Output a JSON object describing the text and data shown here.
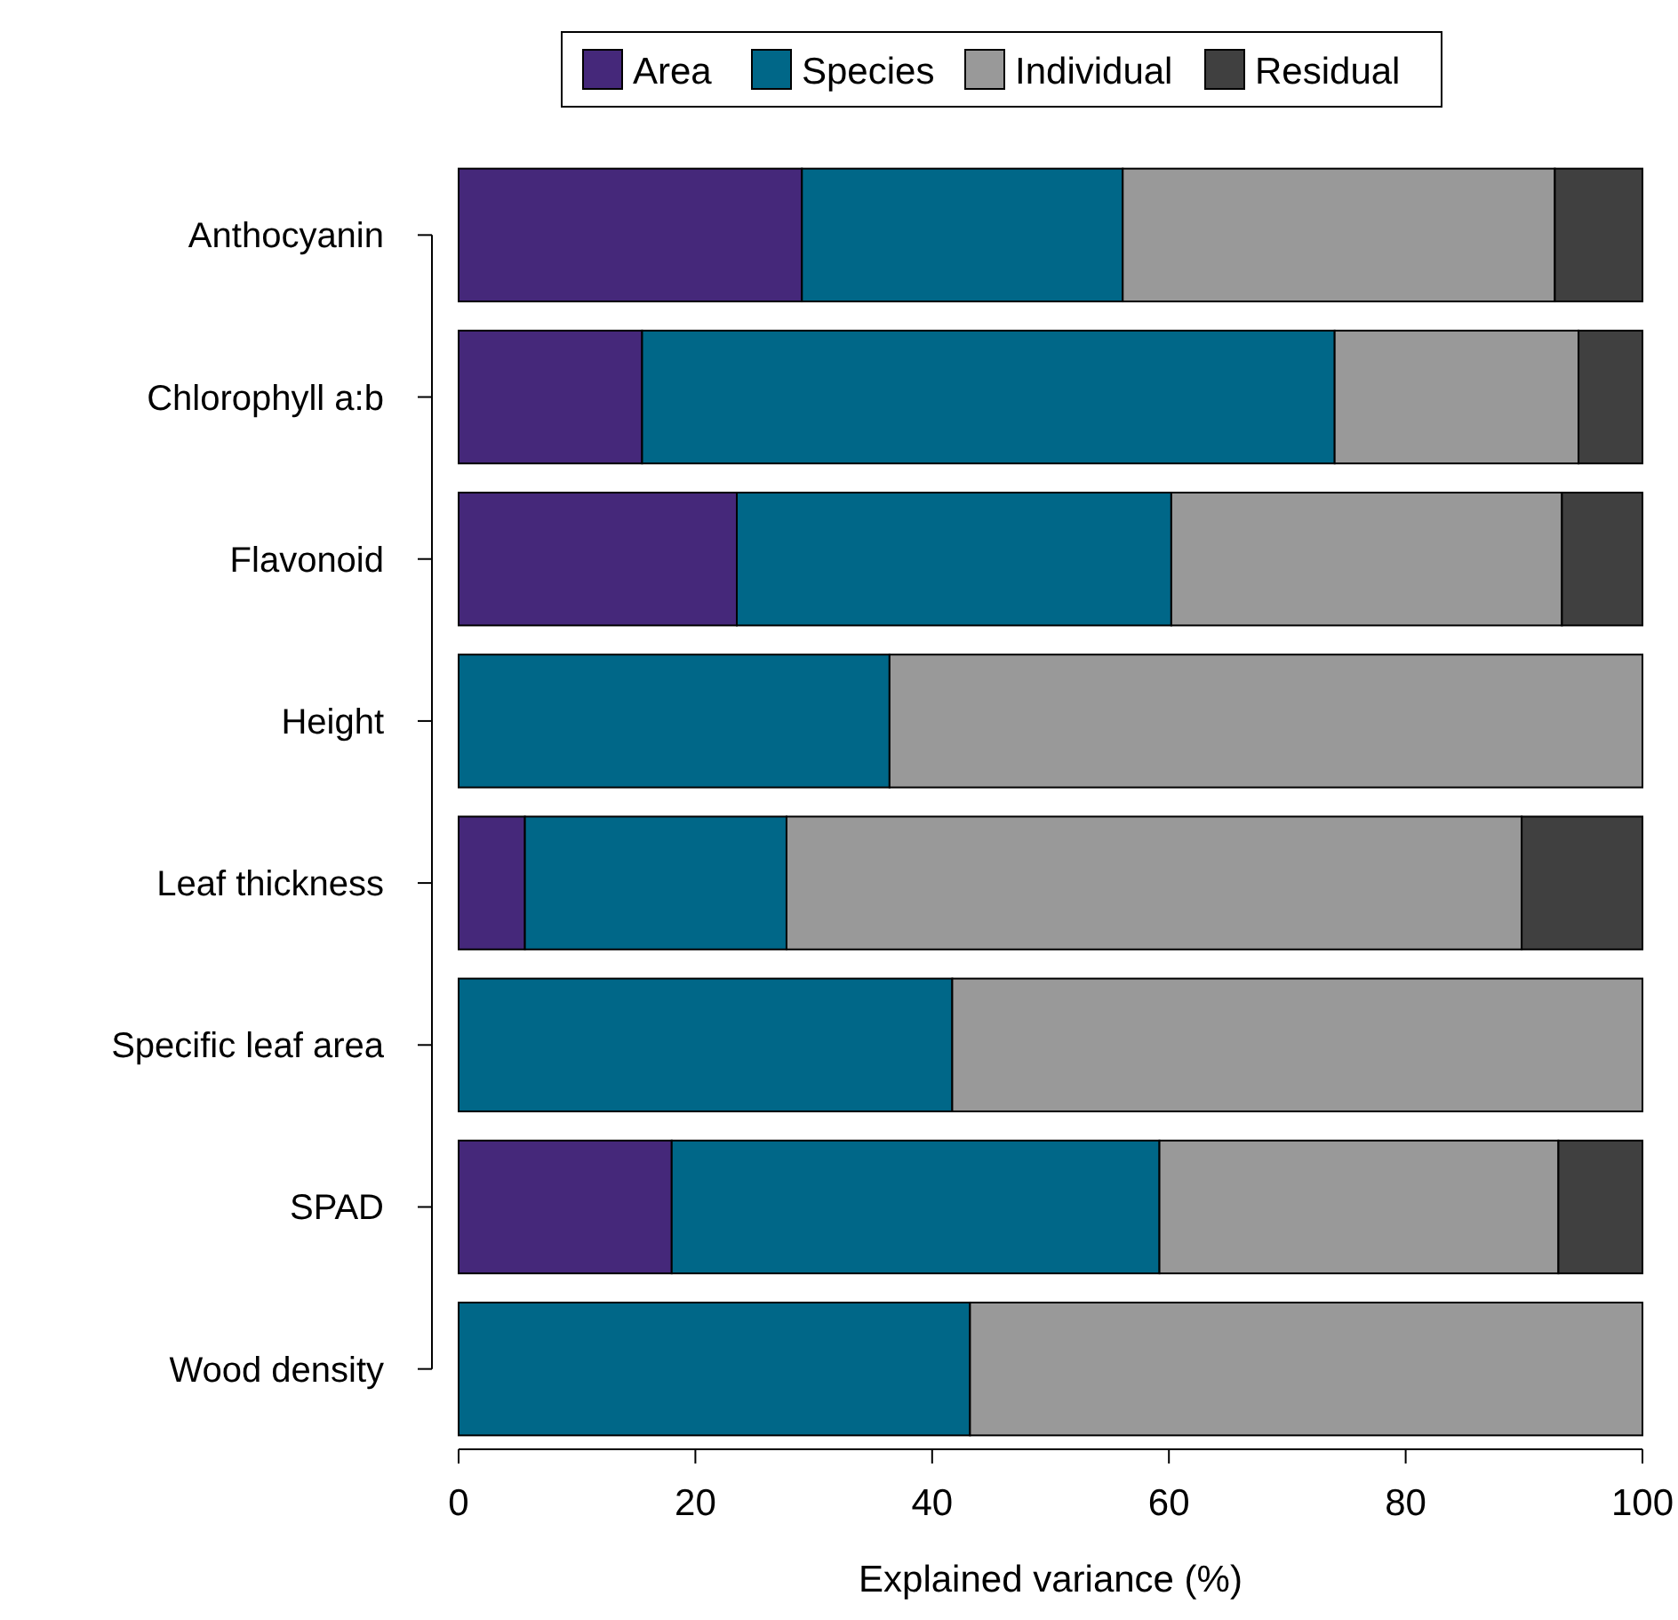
{
  "chart_data": {
    "type": "bar",
    "orientation": "horizontal",
    "stacked": true,
    "xlabel": "Explained variance (%)",
    "categories": [
      "Anthocyanin",
      "Chlorophyll a:b",
      "Flavonoid",
      "Height",
      "Leaf thickness",
      "Specific leaf area",
      "SPAD",
      "Wood density"
    ],
    "series": [
      {
        "name": "Area",
        "color": "#45287a",
        "values": [
          29.0,
          15.5,
          23.5,
          0,
          5.6,
          0,
          18.0,
          0
        ]
      },
      {
        "name": "Species",
        "color": "#006788",
        "values": [
          27.1,
          58.5,
          36.7,
          36.4,
          22.1,
          41.7,
          41.2,
          43.2
        ]
      },
      {
        "name": "Individual",
        "color": "#999999",
        "values": [
          36.5,
          20.6,
          33.0,
          63.6,
          62.1,
          58.3,
          33.7,
          56.8
        ]
      },
      {
        "name": "Residual",
        "color": "#404040",
        "values": [
          7.4,
          5.4,
          6.8,
          0,
          10.2,
          0,
          7.1,
          0
        ]
      }
    ],
    "xlim": [
      0,
      100
    ],
    "xticks": [
      0,
      20,
      40,
      60,
      80,
      100
    ],
    "grid": false,
    "legend": "top"
  }
}
